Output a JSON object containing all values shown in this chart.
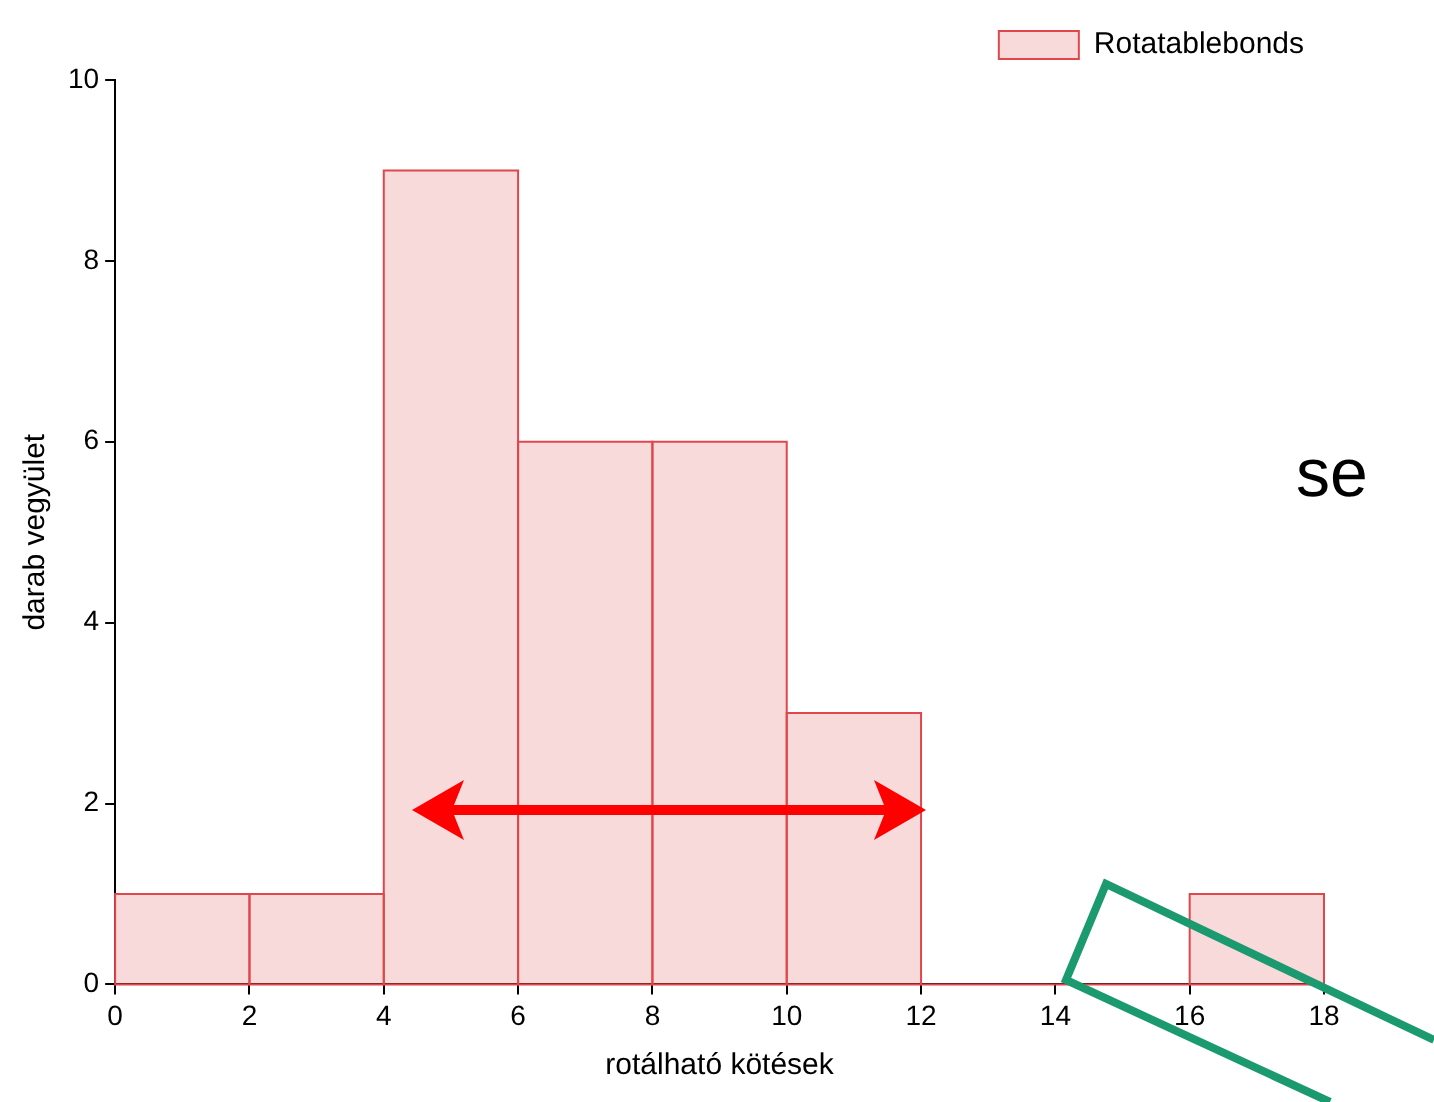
{
  "chart_data": {
    "type": "histogram",
    "xlabel": "rotálható kötések",
    "ylabel": "darab vegyület",
    "bins": [
      0,
      2,
      4,
      6,
      8,
      10,
      12,
      14,
      16,
      18
    ],
    "series": [
      {
        "name": "Rotatablebonds",
        "color": "#e0474c",
        "values": [
          1,
          1,
          9,
          6,
          6,
          3,
          0,
          0,
          1
        ]
      }
    ],
    "xlim": [
      0,
      18
    ],
    "xticks": [
      0,
      2,
      4,
      6,
      8,
      10,
      12,
      14,
      16,
      18
    ],
    "ylim": [
      0,
      10
    ],
    "yticks": [
      0,
      2,
      4,
      6,
      8,
      10
    ],
    "grid": false,
    "legend": "top right",
    "annotations": [
      "se"
    ]
  }
}
